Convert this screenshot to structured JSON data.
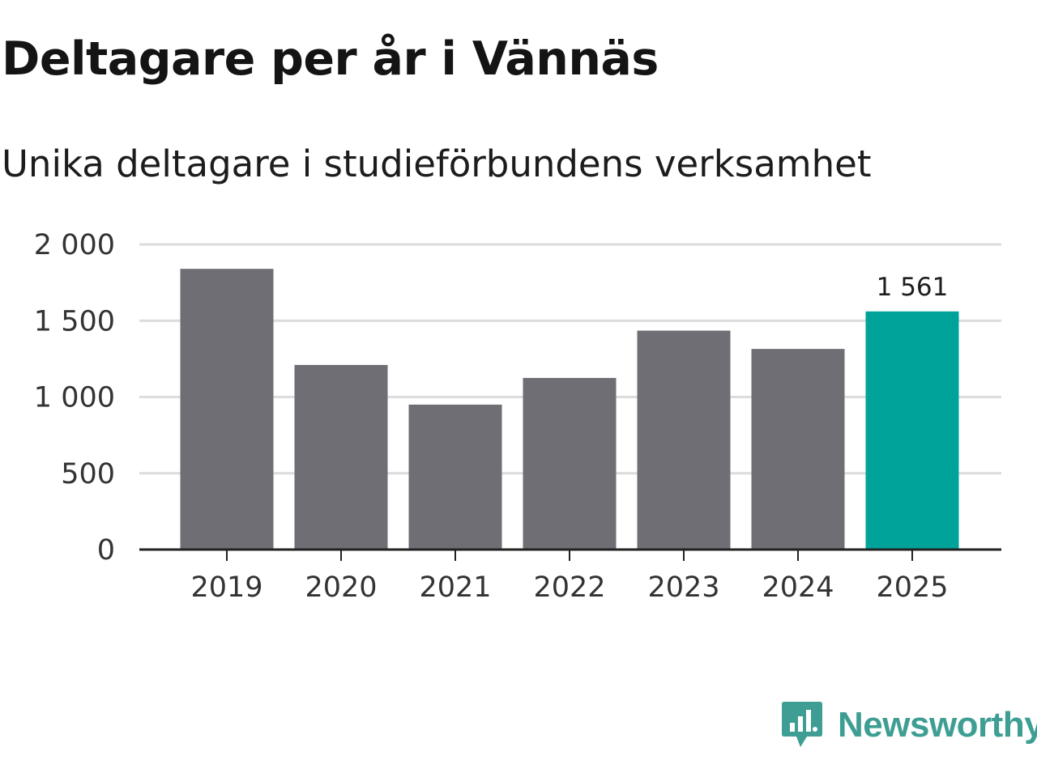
{
  "header": {
    "title": "Deltagare per år i Vännäs",
    "subtitle": "Unika deltagare i studieförbundens verksamhet"
  },
  "chart_data": {
    "type": "bar",
    "title": "Deltagare per år i Vännäs",
    "subtitle": "Unika deltagare i studieförbundens verksamhet",
    "xlabel": "",
    "ylabel": "",
    "categories": [
      "2019",
      "2020",
      "2021",
      "2022",
      "2023",
      "2024",
      "2025"
    ],
    "values": [
      1840,
      1210,
      950,
      1125,
      1435,
      1315,
      1561
    ],
    "ylim": [
      0,
      2000
    ],
    "yticks": [
      0,
      500,
      1000,
      1500,
      2000
    ],
    "ytick_labels": [
      "0",
      "500",
      "1 000",
      "1 500",
      "2 000"
    ],
    "grid": true,
    "highlight_index": 6,
    "highlight_label": "1 561",
    "colors": {
      "bar": "#6f6e74",
      "highlight": "#00a39a",
      "grid": "#dcdcdc",
      "axis": "#222222"
    }
  },
  "branding": {
    "name": "Newsworthy",
    "icon": "newsworthy-logo-icon",
    "color": "#3e9e93"
  }
}
